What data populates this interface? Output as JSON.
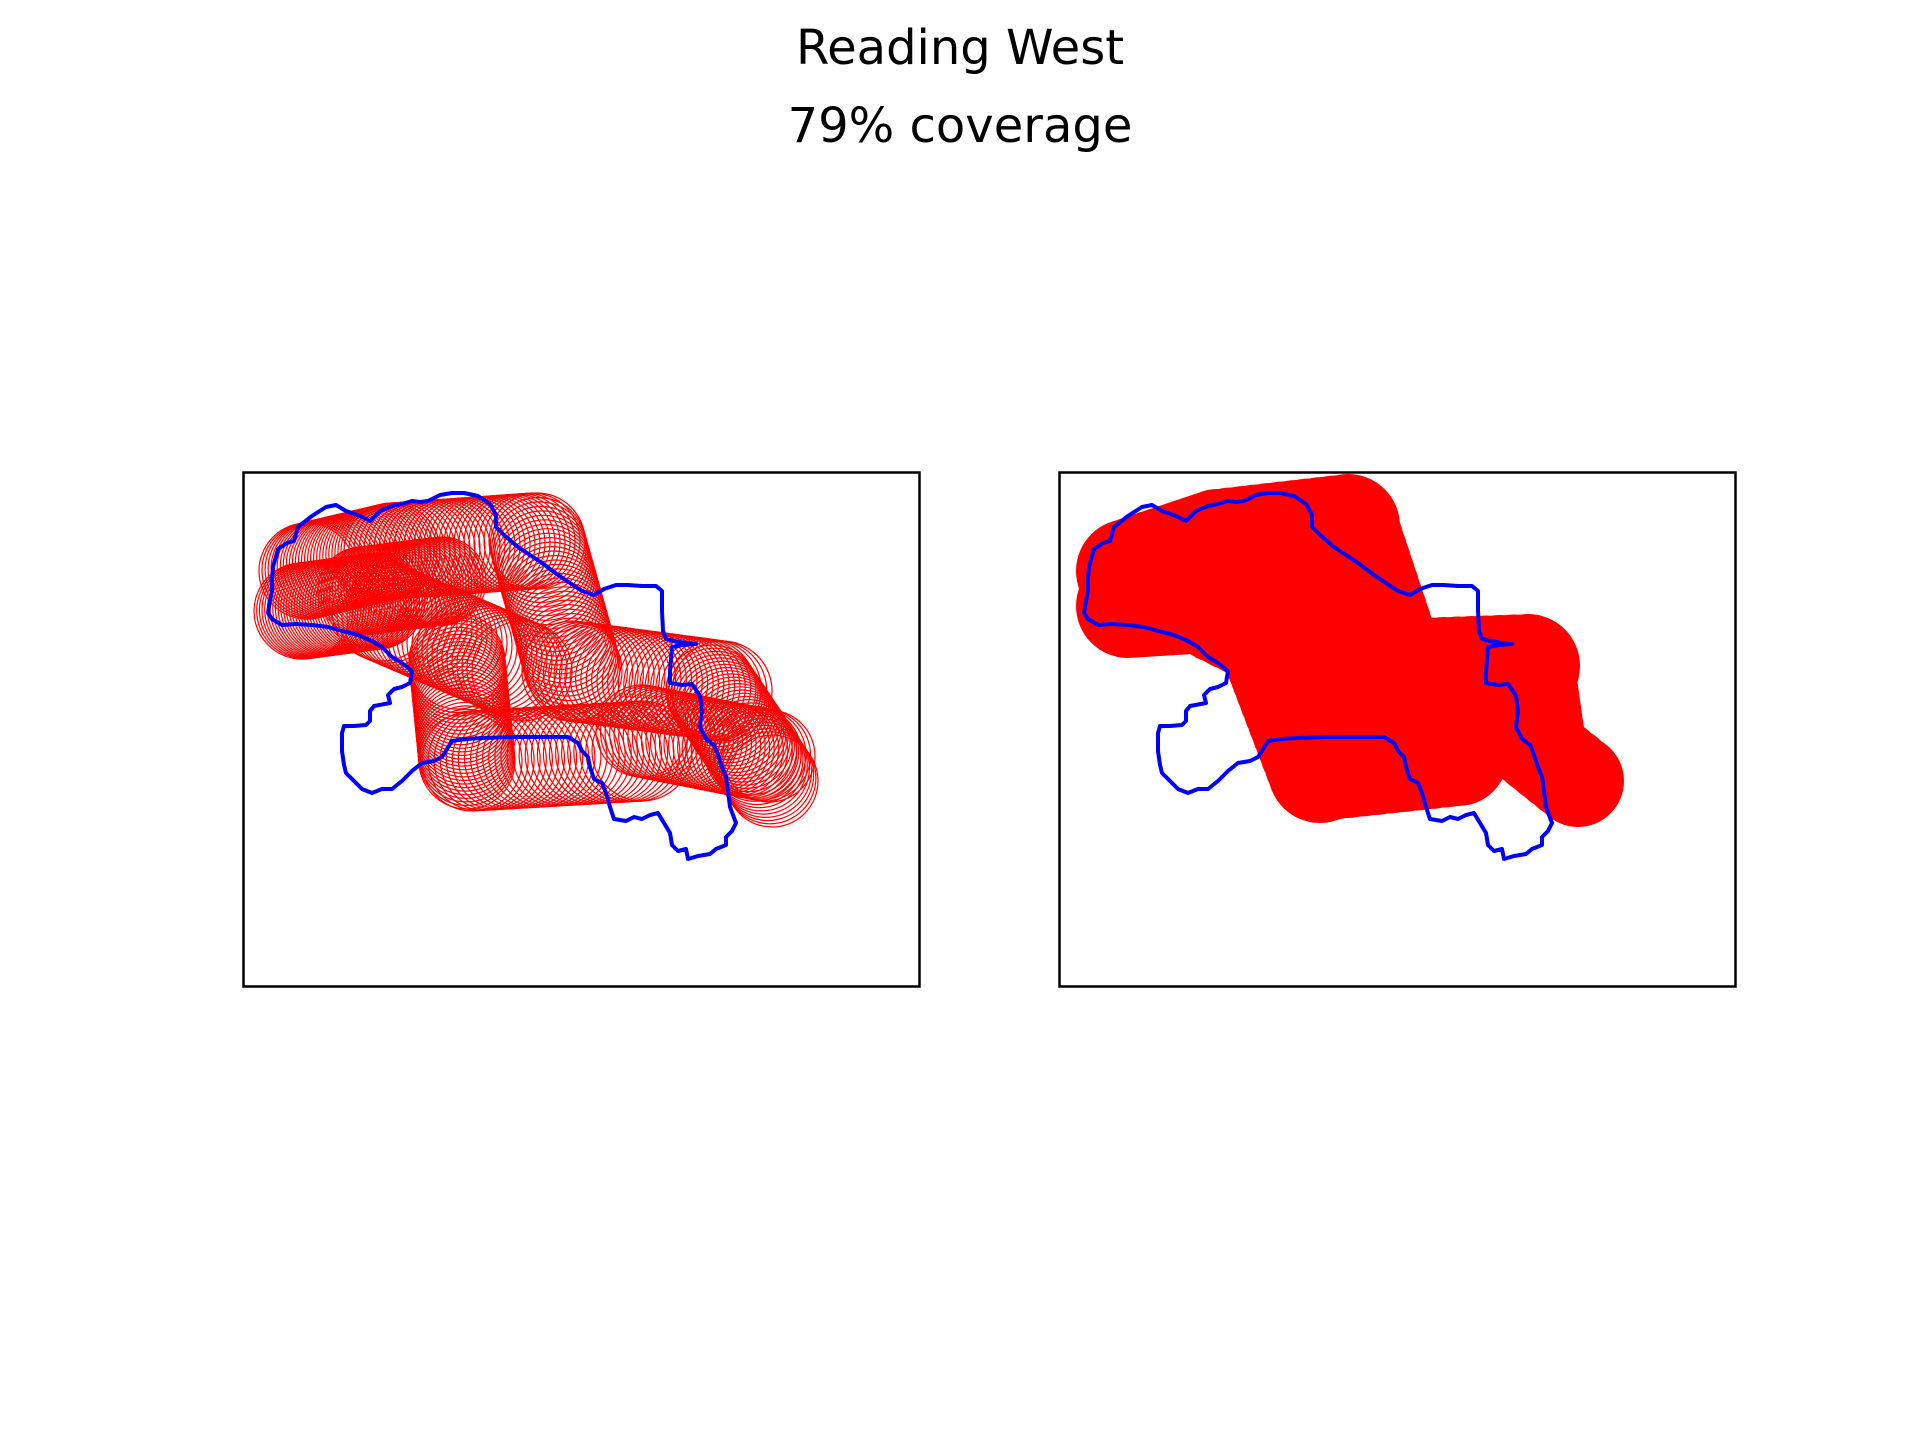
{
  "title": "Reading West",
  "subtitle": "79% coverage",
  "colors": {
    "boundary": "#0000ff",
    "coverage": "#ff0000",
    "frame": "#000000",
    "background": "#ffffff"
  },
  "panels": [
    {
      "style": "circle-outlines",
      "description_shown": ""
    },
    {
      "style": "filled-coverage",
      "description_shown": ""
    }
  ]
}
